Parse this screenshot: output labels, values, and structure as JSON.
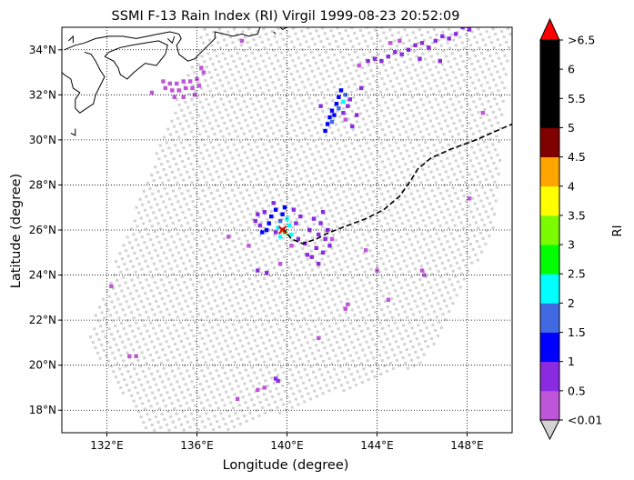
{
  "chart_data": {
    "type": "heatmap",
    "title": "SSMI F-13 Rain Index (RI) Virgil 1999-08-23 20:52:09",
    "xlabel": "Longitude (degree)",
    "ylabel": "Latitude (degree)",
    "xlim": [
      130,
      150
    ],
    "ylim": [
      17,
      35
    ],
    "x_ticks": [
      132,
      136,
      140,
      144,
      148
    ],
    "x_tick_labels": [
      "132°E",
      "136°E",
      "140°E",
      "144°E",
      "148°E"
    ],
    "y_ticks": [
      18,
      20,
      22,
      24,
      26,
      28,
      30,
      32,
      34
    ],
    "y_tick_labels": [
      "18°N",
      "20°N",
      "22°N",
      "24°N",
      "26°N",
      "28°N",
      "30°N",
      "32°N",
      "34°N"
    ],
    "grid": true,
    "colorbar": {
      "label": "RI",
      "bounds": [
        0.01,
        0.5,
        1,
        1.5,
        2,
        2.5,
        3,
        3.5,
        4,
        4.5,
        5,
        5.5,
        6,
        6.5
      ],
      "tick_labels": [
        "<0.01",
        "0.5",
        "1",
        "1.5",
        "2",
        "2.5",
        "3",
        "3.5",
        "4",
        "4.5",
        "5",
        "5.5",
        "6",
        ">6.5"
      ],
      "colors": [
        "#bf55d9",
        "#8a2be2",
        "#0000ff",
        "#4169e1",
        "#00ffff",
        "#00ff00",
        "#7cfc00",
        "#ffff00",
        "#ffa500",
        "#800000",
        "#000000",
        "#000000",
        "#000000"
      ],
      "under_color": "#d3d3d3",
      "over_color": "#ff0000",
      "extend": "both"
    },
    "swath_color": "#d3d3d3",
    "swath_corners": [
      [
        131.1,
        21.2
      ],
      [
        136.4,
        35.2
      ],
      [
        150.0,
        35.2
      ],
      [
        149.2,
        26.0
      ],
      [
        146.1,
        20.1
      ],
      [
        137.5,
        17.1
      ],
      [
        133.8,
        17.1
      ]
    ],
    "rain_pixels": [
      {
        "lon": 134.5,
        "lat": 32.6,
        "ri": 0.3
      },
      {
        "lon": 134.8,
        "lat": 32.5,
        "ri": 0.3
      },
      {
        "lon": 135.1,
        "lat": 32.5,
        "ri": 0.3
      },
      {
        "lon": 135.4,
        "lat": 32.6,
        "ri": 0.3
      },
      {
        "lon": 135.7,
        "lat": 32.6,
        "ri": 0.3
      },
      {
        "lon": 136.0,
        "lat": 32.7,
        "ri": 0.3
      },
      {
        "lon": 134.6,
        "lat": 32.3,
        "ri": 0.3
      },
      {
        "lon": 134.9,
        "lat": 32.2,
        "ri": 0.3
      },
      {
        "lon": 135.2,
        "lat": 32.2,
        "ri": 0.3
      },
      {
        "lon": 135.5,
        "lat": 32.3,
        "ri": 0.3
      },
      {
        "lon": 135.8,
        "lat": 32.3,
        "ri": 0.3
      },
      {
        "lon": 136.1,
        "lat": 32.4,
        "ri": 0.3
      },
      {
        "lon": 135.0,
        "lat": 31.9,
        "ri": 0.3
      },
      {
        "lon": 135.4,
        "lat": 31.9,
        "ri": 0.3
      },
      {
        "lon": 135.9,
        "lat": 32.0,
        "ri": 0.3
      },
      {
        "lon": 136.2,
        "lat": 33.2,
        "ri": 0.3
      },
      {
        "lon": 136.3,
        "lat": 33.0,
        "ri": 0.3
      },
      {
        "lon": 134.0,
        "lat": 32.1,
        "ri": 0.3
      },
      {
        "lon": 138.0,
        "lat": 34.4,
        "ri": 0.3
      },
      {
        "lon": 142.4,
        "lat": 32.2,
        "ri": 1.2
      },
      {
        "lon": 142.3,
        "lat": 31.9,
        "ri": 1.2
      },
      {
        "lon": 142.2,
        "lat": 31.6,
        "ri": 1.2
      },
      {
        "lon": 142.0,
        "lat": 31.3,
        "ri": 1.2
      },
      {
        "lon": 141.9,
        "lat": 31.0,
        "ri": 1.2
      },
      {
        "lon": 141.8,
        "lat": 30.7,
        "ri": 1.2
      },
      {
        "lon": 141.7,
        "lat": 30.4,
        "ri": 1.2
      },
      {
        "lon": 142.6,
        "lat": 32.0,
        "ri": 1.7
      },
      {
        "lon": 142.5,
        "lat": 31.7,
        "ri": 2.2
      },
      {
        "lon": 142.3,
        "lat": 31.4,
        "ri": 1.7
      },
      {
        "lon": 142.1,
        "lat": 31.1,
        "ri": 1.2
      },
      {
        "lon": 142.0,
        "lat": 30.8,
        "ri": 1.7
      },
      {
        "lon": 142.8,
        "lat": 31.8,
        "ri": 0.7
      },
      {
        "lon": 142.7,
        "lat": 31.5,
        "ri": 0.7
      },
      {
        "lon": 142.5,
        "lat": 31.2,
        "ri": 0.7
      },
      {
        "lon": 142.6,
        "lat": 30.9,
        "ri": 0.3
      },
      {
        "lon": 143.1,
        "lat": 31.1,
        "ri": 0.7
      },
      {
        "lon": 142.9,
        "lat": 30.6,
        "ri": 0.7
      },
      {
        "lon": 141.5,
        "lat": 31.5,
        "ri": 0.7
      },
      {
        "lon": 143.3,
        "lat": 32.3,
        "ri": 0.7
      },
      {
        "lon": 143.6,
        "lat": 33.5,
        "ri": 0.7
      },
      {
        "lon": 143.9,
        "lat": 33.6,
        "ri": 0.7
      },
      {
        "lon": 144.2,
        "lat": 33.5,
        "ri": 0.7
      },
      {
        "lon": 144.5,
        "lat": 33.7,
        "ri": 0.7
      },
      {
        "lon": 144.8,
        "lat": 33.9,
        "ri": 0.7
      },
      {
        "lon": 145.1,
        "lat": 33.8,
        "ri": 0.7
      },
      {
        "lon": 145.4,
        "lat": 34.0,
        "ri": 0.7
      },
      {
        "lon": 145.7,
        "lat": 34.2,
        "ri": 0.7
      },
      {
        "lon": 146.0,
        "lat": 34.3,
        "ri": 0.7
      },
      {
        "lon": 146.3,
        "lat": 34.1,
        "ri": 0.7
      },
      {
        "lon": 146.6,
        "lat": 34.4,
        "ri": 0.7
      },
      {
        "lon": 146.9,
        "lat": 34.6,
        "ri": 0.7
      },
      {
        "lon": 147.2,
        "lat": 34.5,
        "ri": 0.7
      },
      {
        "lon": 147.5,
        "lat": 34.7,
        "ri": 0.7
      },
      {
        "lon": 147.8,
        "lat": 35.0,
        "ri": 0.7
      },
      {
        "lon": 148.1,
        "lat": 34.9,
        "ri": 0.7
      },
      {
        "lon": 146.8,
        "lat": 33.5,
        "ri": 0.7
      },
      {
        "lon": 145.0,
        "lat": 34.4,
        "ri": 0.3
      },
      {
        "lon": 144.6,
        "lat": 34.3,
        "ri": 0.3
      },
      {
        "lon": 145.9,
        "lat": 33.6,
        "ri": 0.7
      },
      {
        "lon": 143.2,
        "lat": 33.3,
        "ri": 0.3
      },
      {
        "lon": 139.9,
        "lat": 27.0,
        "ri": 1.2
      },
      {
        "lon": 139.8,
        "lat": 26.7,
        "ri": 1.2
      },
      {
        "lon": 139.7,
        "lat": 26.4,
        "ri": 1.7
      },
      {
        "lon": 139.6,
        "lat": 26.1,
        "ri": 2.2
      },
      {
        "lon": 139.5,
        "lat": 25.9,
        "ri": 0.7
      },
      {
        "lon": 139.3,
        "lat": 26.6,
        "ri": 1.2
      },
      {
        "lon": 139.2,
        "lat": 26.3,
        "ri": 1.2
      },
      {
        "lon": 139.1,
        "lat": 26.0,
        "ri": 1.2
      },
      {
        "lon": 138.9,
        "lat": 25.9,
        "ri": 1.2
      },
      {
        "lon": 138.8,
        "lat": 26.2,
        "ri": 0.7
      },
      {
        "lon": 140.0,
        "lat": 26.5,
        "ri": 2.2
      },
      {
        "lon": 140.1,
        "lat": 26.2,
        "ri": 2.2
      },
      {
        "lon": 139.9,
        "lat": 25.9,
        "ri": 2.8
      },
      {
        "lon": 140.2,
        "lat": 25.8,
        "ri": 2.2
      },
      {
        "lon": 139.7,
        "lat": 25.7,
        "ri": 2.2
      },
      {
        "lon": 139.5,
        "lat": 26.9,
        "ri": 1.2
      },
      {
        "lon": 138.6,
        "lat": 26.4,
        "ri": 0.7
      },
      {
        "lon": 138.7,
        "lat": 26.7,
        "ri": 0.7
      },
      {
        "lon": 139.0,
        "lat": 26.8,
        "ri": 0.7
      },
      {
        "lon": 139.4,
        "lat": 27.2,
        "ri": 0.7
      },
      {
        "lon": 140.3,
        "lat": 26.9,
        "ri": 0.7
      },
      {
        "lon": 140.6,
        "lat": 26.6,
        "ri": 0.7
      },
      {
        "lon": 140.4,
        "lat": 26.3,
        "ri": 0.7
      },
      {
        "lon": 140.5,
        "lat": 25.6,
        "ri": 0.7
      },
      {
        "lon": 140.8,
        "lat": 25.4,
        "ri": 0.7
      },
      {
        "lon": 140.2,
        "lat": 25.3,
        "ri": 0.3
      },
      {
        "lon": 141.2,
        "lat": 26.5,
        "ri": 0.7
      },
      {
        "lon": 141.5,
        "lat": 26.3,
        "ri": 0.7
      },
      {
        "lon": 141.8,
        "lat": 26.0,
        "ri": 0.7
      },
      {
        "lon": 141.4,
        "lat": 25.8,
        "ri": 0.7
      },
      {
        "lon": 141.7,
        "lat": 25.6,
        "ri": 0.7
      },
      {
        "lon": 141.0,
        "lat": 26.0,
        "ri": 0.7
      },
      {
        "lon": 141.3,
        "lat": 25.2,
        "ri": 0.7
      },
      {
        "lon": 141.6,
        "lat": 25.0,
        "ri": 0.7
      },
      {
        "lon": 141.9,
        "lat": 25.3,
        "ri": 0.7
      },
      {
        "lon": 141.1,
        "lat": 24.8,
        "ri": 0.7
      },
      {
        "lon": 141.4,
        "lat": 24.5,
        "ri": 0.7
      },
      {
        "lon": 140.9,
        "lat": 24.9,
        "ri": 0.7
      },
      {
        "lon": 141.6,
        "lat": 26.8,
        "ri": 0.7
      },
      {
        "lon": 142.0,
        "lat": 25.6,
        "ri": 0.3
      },
      {
        "lon": 137.4,
        "lat": 25.7,
        "ri": 0.3
      },
      {
        "lon": 138.3,
        "lat": 25.3,
        "ri": 0.3
      },
      {
        "lon": 138.7,
        "lat": 24.2,
        "ri": 0.7
      },
      {
        "lon": 139.1,
        "lat": 24.1,
        "ri": 0.7
      },
      {
        "lon": 139.7,
        "lat": 24.5,
        "ri": 0.3
      },
      {
        "lon": 143.5,
        "lat": 25.1,
        "ri": 0.3
      },
      {
        "lon": 144.0,
        "lat": 24.2,
        "ri": 0.3
      },
      {
        "lon": 146.0,
        "lat": 24.2,
        "ri": 0.3
      },
      {
        "lon": 146.1,
        "lat": 24.0,
        "ri": 0.3
      },
      {
        "lon": 148.1,
        "lat": 27.4,
        "ri": 0.3
      },
      {
        "lon": 148.7,
        "lat": 31.2,
        "ri": 0.3
      },
      {
        "lon": 144.5,
        "lat": 22.9,
        "ri": 0.3
      },
      {
        "lon": 142.7,
        "lat": 22.7,
        "ri": 0.3
      },
      {
        "lon": 142.6,
        "lat": 22.5,
        "ri": 0.3
      },
      {
        "lon": 141.4,
        "lat": 21.2,
        "ri": 0.3
      },
      {
        "lon": 132.2,
        "lat": 23.5,
        "ri": 0.3
      },
      {
        "lon": 133.0,
        "lat": 20.4,
        "ri": 0.3
      },
      {
        "lon": 133.3,
        "lat": 20.4,
        "ri": 0.3
      },
      {
        "lon": 137.8,
        "lat": 18.5,
        "ri": 0.3
      },
      {
        "lon": 138.7,
        "lat": 18.9,
        "ri": 0.3
      },
      {
        "lon": 139.0,
        "lat": 19.0,
        "ri": 0.3
      },
      {
        "lon": 139.5,
        "lat": 19.4,
        "ri": 0.7
      },
      {
        "lon": 139.6,
        "lat": 19.3,
        "ri": 0.7
      }
    ],
    "storm_track": [
      [
        139.8,
        26.1
      ],
      [
        140.2,
        25.6
      ],
      [
        140.7,
        25.4
      ],
      [
        141.3,
        25.6
      ],
      [
        141.9,
        25.9
      ],
      [
        142.7,
        26.2
      ],
      [
        143.5,
        26.5
      ],
      [
        144.3,
        26.9
      ],
      [
        145.0,
        27.5
      ],
      [
        145.5,
        28.2
      ],
      [
        145.8,
        28.7
      ],
      [
        146.4,
        29.2
      ],
      [
        147.3,
        29.6
      ],
      [
        148.4,
        30.0
      ],
      [
        149.3,
        30.4
      ],
      [
        150.0,
        30.7
      ]
    ],
    "storm_position": {
      "lon": 139.8,
      "lat": 26.0
    },
    "coastlines": [
      [
        [
          131.0,
          33.9
        ],
        [
          131.3,
          33.8
        ],
        [
          131.5,
          33.5
        ],
        [
          131.7,
          33.1
        ],
        [
          131.9,
          32.8
        ],
        [
          131.7,
          32.4
        ],
        [
          131.5,
          32.0
        ],
        [
          131.4,
          31.6
        ],
        [
          131.1,
          31.4
        ],
        [
          130.8,
          31.2
        ],
        [
          130.6,
          31.4
        ],
        [
          130.6,
          31.8
        ],
        [
          130.8,
          32.1
        ],
        [
          130.5,
          32.3
        ],
        [
          130.4,
          32.7
        ],
        [
          130.1,
          32.9
        ],
        [
          130.0,
          33.0
        ]
      ],
      [
        [
          130.1,
          34.0
        ],
        [
          130.6,
          34.2
        ],
        [
          131.0,
          34.3
        ],
        [
          131.5,
          34.5
        ],
        [
          132.1,
          34.6
        ],
        [
          132.7,
          34.6
        ],
        [
          133.3,
          34.5
        ],
        [
          133.8,
          34.6
        ],
        [
          134.3,
          34.7
        ],
        [
          134.8,
          34.8
        ],
        [
          135.2,
          34.7
        ],
        [
          135.3,
          34.5
        ],
        [
          135.1,
          34.2
        ],
        [
          135.2,
          33.8
        ],
        [
          135.6,
          33.5
        ],
        [
          135.9,
          33.6
        ],
        [
          136.2,
          33.9
        ],
        [
          136.5,
          34.2
        ],
        [
          136.8,
          34.5
        ],
        [
          136.8,
          34.8
        ],
        [
          137.2,
          34.7
        ],
        [
          137.6,
          34.6
        ],
        [
          138.0,
          34.7
        ],
        [
          138.3,
          34.6
        ],
        [
          138.7,
          34.7
        ],
        [
          138.8,
          35.0
        ],
        [
          139.1,
          35.1
        ],
        [
          139.6,
          35.1
        ],
        [
          139.8,
          34.9
        ],
        [
          140.0,
          35.0
        ],
        [
          140.3,
          35.1
        ],
        [
          140.5,
          35.2
        ]
      ],
      [
        [
          131.9,
          33.7
        ],
        [
          132.3,
          33.5
        ],
        [
          132.5,
          33.2
        ],
        [
          132.6,
          32.9
        ],
        [
          132.9,
          32.7
        ],
        [
          133.2,
          33.0
        ],
        [
          133.7,
          33.4
        ],
        [
          134.2,
          33.3
        ],
        [
          134.6,
          33.8
        ],
        [
          134.7,
          34.2
        ],
        [
          134.3,
          34.4
        ],
        [
          133.7,
          34.3
        ],
        [
          133.1,
          34.2
        ],
        [
          132.6,
          34.1
        ],
        [
          132.1,
          33.9
        ],
        [
          131.9,
          33.7
        ]
      ],
      [
        [
          130.3,
          34.4
        ],
        [
          130.5,
          34.6
        ],
        [
          130.5,
          34.3
        ]
      ],
      [
        [
          130.6,
          30.5
        ],
        [
          130.6,
          30.2
        ],
        [
          130.4,
          30.3
        ]
      ],
      [
        [
          139.4,
          34.8
        ],
        [
          139.5,
          34.7
        ]
      ],
      [
        [
          134.7,
          34.5
        ],
        [
          134.9,
          34.3
        ],
        [
          135.0,
          34.6
        ]
      ]
    ]
  }
}
